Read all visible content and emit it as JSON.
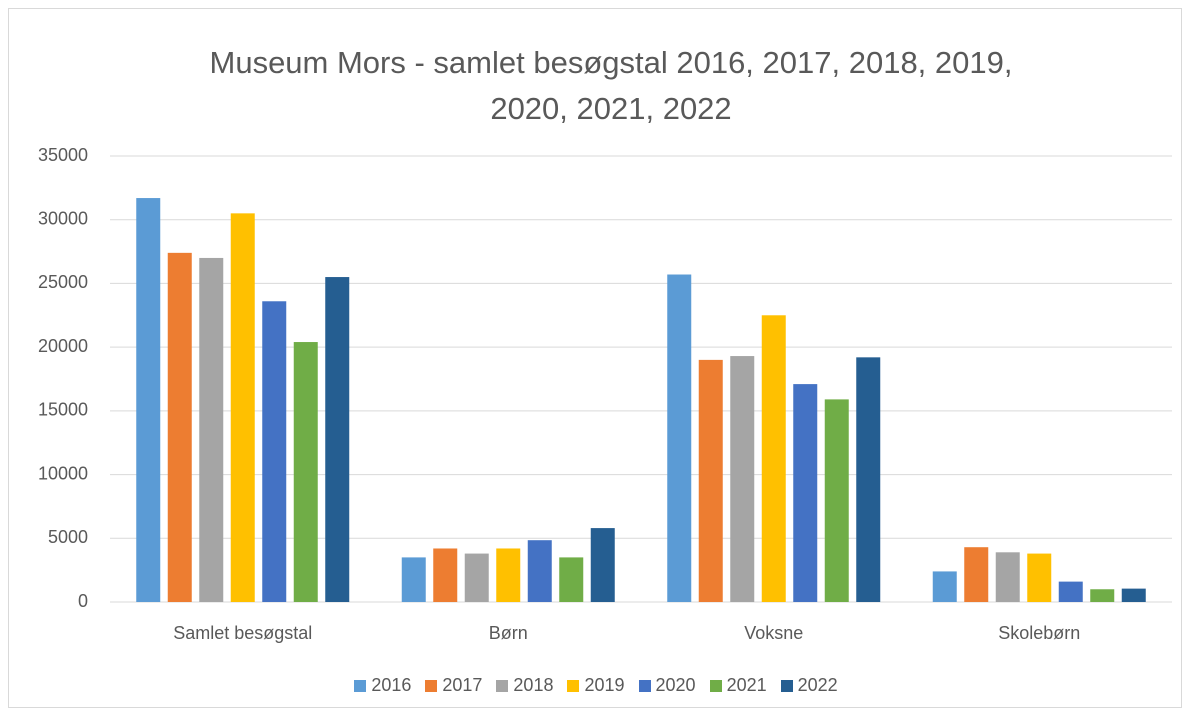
{
  "chart_data": {
    "type": "bar",
    "title": "Museum Mors - samlet besøgstal 2016, 2017, 2018, 2019, 2020, 2021, 2022",
    "categories": [
      "Samlet besøgstal",
      "Børn",
      "Voksne",
      "Skolebørn"
    ],
    "series": [
      {
        "name": "2016",
        "color": "#5b9bd5",
        "values": [
          31700,
          3500,
          25700,
          2400
        ]
      },
      {
        "name": "2017",
        "color": "#ed7d31",
        "values": [
          27400,
          4200,
          19000,
          4300
        ]
      },
      {
        "name": "2018",
        "color": "#a5a5a5",
        "values": [
          27000,
          3800,
          19300,
          3900
        ]
      },
      {
        "name": "2019",
        "color": "#ffc000",
        "values": [
          30500,
          4200,
          22500,
          3800
        ]
      },
      {
        "name": "2020",
        "color": "#4472c4",
        "values": [
          23600,
          4850,
          17100,
          1600
        ]
      },
      {
        "name": "2021",
        "color": "#70ad47",
        "values": [
          20400,
          3500,
          15900,
          1000
        ]
      },
      {
        "name": "2022",
        "color": "#255e91",
        "values": [
          25500,
          5800,
          19200,
          1050
        ]
      }
    ],
    "ylim": [
      0,
      35000
    ],
    "yticks": [
      0,
      5000,
      10000,
      15000,
      20000,
      25000,
      30000,
      35000
    ],
    "grid": true,
    "legend": "bottom"
  }
}
